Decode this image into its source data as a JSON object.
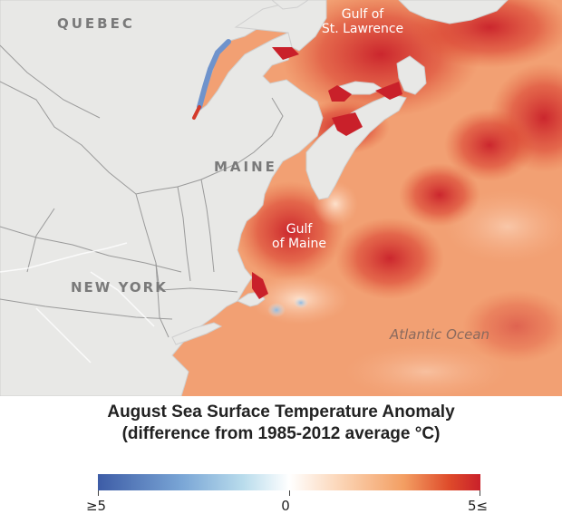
{
  "map": {
    "labels": {
      "quebec": "QUEBEC",
      "maine": "MAINE",
      "new_york": "NEW YORK",
      "gulf_st_lawrence_line1": "Gulf of",
      "gulf_st_lawrence_line2": "St. Lawrence",
      "gulf_maine_line1": "Gulf",
      "gulf_maine_line2": "of Maine",
      "atlantic": "Atlantic Ocean"
    },
    "colors": {
      "land": "#e8e8e6",
      "borders": "#9a9a9a",
      "warm_max": "#c9202a",
      "cool_max": "#3d5ca6"
    }
  },
  "legend": {
    "title_line1": "August Sea Surface Temperature Anomaly",
    "title_line2": "(difference from 1985-2012 average °C)",
    "min_label": "≥5",
    "mid_label": "0",
    "max_label": "5≤",
    "scale": {
      "min": -5,
      "mid": 0,
      "max": 5
    }
  }
}
